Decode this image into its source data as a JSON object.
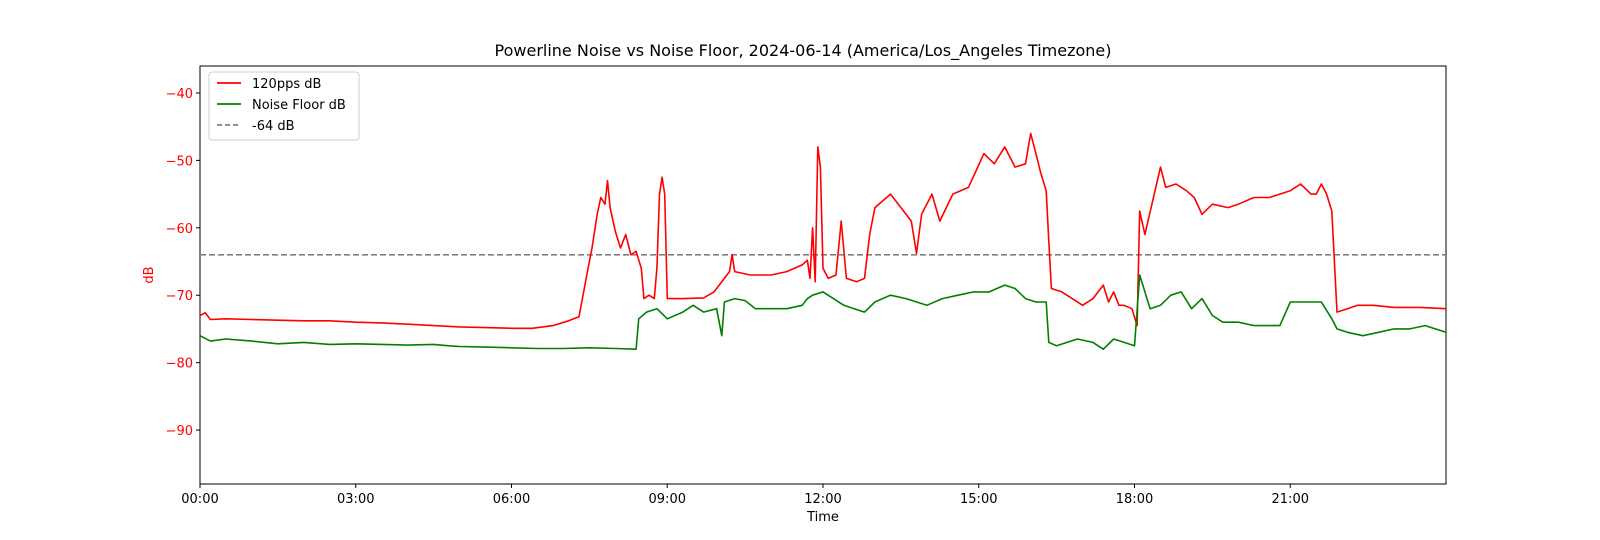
{
  "chart_data": {
    "type": "line",
    "title": "Powerline Noise vs Noise Floor, 2024-06-14 (America/Los_Angeles Timezone)",
    "xlabel": "Time",
    "ylabel": "dB",
    "x_unit": "hours",
    "xlim": [
      0,
      24
    ],
    "ylim": [
      -98,
      -36
    ],
    "y_ticks": [
      -40,
      -50,
      -60,
      -70,
      -80,
      -90
    ],
    "x_ticks": [
      {
        "value": 0,
        "label": "00:00"
      },
      {
        "value": 3,
        "label": "03:00"
      },
      {
        "value": 6,
        "label": "06:00"
      },
      {
        "value": 9,
        "label": "09:00"
      },
      {
        "value": 12,
        "label": "12:00"
      },
      {
        "value": 15,
        "label": "15:00"
      },
      {
        "value": 18,
        "label": "18:00"
      },
      {
        "value": 21,
        "label": "21:00"
      }
    ],
    "grid": false,
    "legend_position": "upper-left",
    "reference_line": {
      "name": "-64 dB",
      "y": -64,
      "color": "#808080",
      "style": "dashed"
    },
    "series": [
      {
        "name": "120pps dB",
        "color": "#ff0000",
        "points": [
          [
            0.0,
            -73.0
          ],
          [
            0.1,
            -72.6
          ],
          [
            0.2,
            -73.6
          ],
          [
            0.5,
            -73.5
          ],
          [
            1.0,
            -73.6
          ],
          [
            1.5,
            -73.7
          ],
          [
            2.0,
            -73.8
          ],
          [
            2.5,
            -73.8
          ],
          [
            3.0,
            -74.0
          ],
          [
            3.5,
            -74.1
          ],
          [
            4.0,
            -74.3
          ],
          [
            4.5,
            -74.5
          ],
          [
            5.0,
            -74.7
          ],
          [
            5.5,
            -74.8
          ],
          [
            6.0,
            -74.9
          ],
          [
            6.4,
            -74.9
          ],
          [
            6.8,
            -74.5
          ],
          [
            7.1,
            -73.8
          ],
          [
            7.3,
            -73.2
          ],
          [
            7.45,
            -67.0
          ],
          [
            7.55,
            -63.0
          ],
          [
            7.65,
            -58.0
          ],
          [
            7.72,
            -55.5
          ],
          [
            7.8,
            -56.5
          ],
          [
            7.85,
            -53.0
          ],
          [
            7.9,
            -57.0
          ],
          [
            8.0,
            -60.5
          ],
          [
            8.1,
            -63.0
          ],
          [
            8.2,
            -61.0
          ],
          [
            8.3,
            -64.0
          ],
          [
            8.4,
            -63.5
          ],
          [
            8.5,
            -66.0
          ],
          [
            8.55,
            -70.5
          ],
          [
            8.65,
            -70.0
          ],
          [
            8.75,
            -70.5
          ],
          [
            8.8,
            -66.0
          ],
          [
            8.85,
            -55.0
          ],
          [
            8.9,
            -52.5
          ],
          [
            8.95,
            -55.0
          ],
          [
            9.0,
            -70.5
          ],
          [
            9.3,
            -70.5
          ],
          [
            9.7,
            -70.4
          ],
          [
            9.9,
            -69.5
          ],
          [
            10.0,
            -68.5
          ],
          [
            10.2,
            -66.5
          ],
          [
            10.25,
            -64.0
          ],
          [
            10.3,
            -66.5
          ],
          [
            10.6,
            -67.0
          ],
          [
            11.0,
            -67.0
          ],
          [
            11.3,
            -66.5
          ],
          [
            11.6,
            -65.5
          ],
          [
            11.7,
            -64.8
          ],
          [
            11.75,
            -67.5
          ],
          [
            11.8,
            -60.0
          ],
          [
            11.85,
            -68.0
          ],
          [
            11.9,
            -48.0
          ],
          [
            11.95,
            -51.0
          ],
          [
            12.0,
            -66.0
          ],
          [
            12.1,
            -67.5
          ],
          [
            12.25,
            -67.0
          ],
          [
            12.35,
            -59.0
          ],
          [
            12.45,
            -67.5
          ],
          [
            12.65,
            -68.0
          ],
          [
            12.8,
            -67.5
          ],
          [
            12.9,
            -61.0
          ],
          [
            13.0,
            -57.0
          ],
          [
            13.3,
            -55.0
          ],
          [
            13.5,
            -57.0
          ],
          [
            13.7,
            -59.0
          ],
          [
            13.8,
            -63.8
          ],
          [
            13.9,
            -58.0
          ],
          [
            14.1,
            -55.0
          ],
          [
            14.25,
            -59.0
          ],
          [
            14.5,
            -55.0
          ],
          [
            14.8,
            -54.0
          ],
          [
            14.95,
            -51.5
          ],
          [
            15.1,
            -49.0
          ],
          [
            15.3,
            -50.5
          ],
          [
            15.5,
            -48.0
          ],
          [
            15.7,
            -51.0
          ],
          [
            15.9,
            -50.5
          ],
          [
            16.0,
            -46.0
          ],
          [
            16.1,
            -49.0
          ],
          [
            16.2,
            -52.0
          ],
          [
            16.3,
            -54.5
          ],
          [
            16.35,
            -62.0
          ],
          [
            16.4,
            -69.0
          ],
          [
            16.6,
            -69.5
          ],
          [
            16.8,
            -70.5
          ],
          [
            17.0,
            -71.5
          ],
          [
            17.2,
            -70.5
          ],
          [
            17.4,
            -68.5
          ],
          [
            17.5,
            -71.0
          ],
          [
            17.6,
            -69.5
          ],
          [
            17.7,
            -71.5
          ],
          [
            17.8,
            -71.5
          ],
          [
            17.95,
            -72.0
          ],
          [
            18.05,
            -74.5
          ],
          [
            18.1,
            -57.5
          ],
          [
            18.2,
            -61.0
          ],
          [
            18.35,
            -56.0
          ],
          [
            18.5,
            -51.0
          ],
          [
            18.6,
            -54.0
          ],
          [
            18.8,
            -53.5
          ],
          [
            19.0,
            -54.5
          ],
          [
            19.15,
            -55.5
          ],
          [
            19.3,
            -58.0
          ],
          [
            19.5,
            -56.5
          ],
          [
            19.8,
            -57.0
          ],
          [
            20.0,
            -56.5
          ],
          [
            20.3,
            -55.5
          ],
          [
            20.6,
            -55.5
          ],
          [
            20.8,
            -55.0
          ],
          [
            21.0,
            -54.5
          ],
          [
            21.2,
            -53.5
          ],
          [
            21.4,
            -55.0
          ],
          [
            21.5,
            -55.0
          ],
          [
            21.6,
            -53.5
          ],
          [
            21.7,
            -55.0
          ],
          [
            21.8,
            -57.5
          ],
          [
            21.85,
            -65.0
          ],
          [
            21.9,
            -72.5
          ],
          [
            22.1,
            -72.0
          ],
          [
            22.3,
            -71.5
          ],
          [
            22.6,
            -71.5
          ],
          [
            23.0,
            -71.8
          ],
          [
            23.5,
            -71.8
          ],
          [
            24.0,
            -72.0
          ]
        ]
      },
      {
        "name": "Noise Floor dB",
        "color": "#008000",
        "points": [
          [
            0.0,
            -76.0
          ],
          [
            0.2,
            -76.8
          ],
          [
            0.5,
            -76.5
          ],
          [
            1.0,
            -76.8
          ],
          [
            1.5,
            -77.2
          ],
          [
            2.0,
            -77.0
          ],
          [
            2.5,
            -77.3
          ],
          [
            3.0,
            -77.2
          ],
          [
            3.5,
            -77.3
          ],
          [
            4.0,
            -77.4
          ],
          [
            4.5,
            -77.3
          ],
          [
            4.8,
            -77.5
          ],
          [
            5.0,
            -77.6
          ],
          [
            5.5,
            -77.7
          ],
          [
            6.0,
            -77.8
          ],
          [
            6.5,
            -77.9
          ],
          [
            7.0,
            -77.9
          ],
          [
            7.5,
            -77.8
          ],
          [
            8.0,
            -77.9
          ],
          [
            8.4,
            -78.0
          ],
          [
            8.45,
            -73.5
          ],
          [
            8.6,
            -72.5
          ],
          [
            8.8,
            -72.0
          ],
          [
            9.0,
            -73.5
          ],
          [
            9.3,
            -72.5
          ],
          [
            9.5,
            -71.5
          ],
          [
            9.7,
            -72.5
          ],
          [
            9.95,
            -72.0
          ],
          [
            10.05,
            -76.0
          ],
          [
            10.1,
            -71.0
          ],
          [
            10.3,
            -70.5
          ],
          [
            10.5,
            -70.8
          ],
          [
            10.7,
            -72.0
          ],
          [
            11.0,
            -72.0
          ],
          [
            11.3,
            -72.0
          ],
          [
            11.6,
            -71.5
          ],
          [
            11.7,
            -70.5
          ],
          [
            11.8,
            -70.0
          ],
          [
            12.0,
            -69.5
          ],
          [
            12.2,
            -70.5
          ],
          [
            12.4,
            -71.5
          ],
          [
            12.6,
            -72.0
          ],
          [
            12.8,
            -72.5
          ],
          [
            13.0,
            -71.0
          ],
          [
            13.3,
            -70.0
          ],
          [
            13.6,
            -70.5
          ],
          [
            14.0,
            -71.5
          ],
          [
            14.3,
            -70.5
          ],
          [
            14.6,
            -70.0
          ],
          [
            14.9,
            -69.5
          ],
          [
            15.2,
            -69.5
          ],
          [
            15.5,
            -68.5
          ],
          [
            15.7,
            -69.0
          ],
          [
            15.9,
            -70.5
          ],
          [
            16.1,
            -71.0
          ],
          [
            16.3,
            -71.0
          ],
          [
            16.35,
            -77.0
          ],
          [
            16.5,
            -77.5
          ],
          [
            16.7,
            -77.0
          ],
          [
            16.9,
            -76.5
          ],
          [
            17.2,
            -77.0
          ],
          [
            17.4,
            -78.0
          ],
          [
            17.6,
            -76.5
          ],
          [
            17.8,
            -77.0
          ],
          [
            18.0,
            -77.5
          ],
          [
            18.1,
            -67.0
          ],
          [
            18.3,
            -72.0
          ],
          [
            18.5,
            -71.5
          ],
          [
            18.7,
            -70.0
          ],
          [
            18.9,
            -69.5
          ],
          [
            19.1,
            -72.0
          ],
          [
            19.3,
            -70.5
          ],
          [
            19.5,
            -73.0
          ],
          [
            19.7,
            -74.0
          ],
          [
            20.0,
            -74.0
          ],
          [
            20.3,
            -74.5
          ],
          [
            20.6,
            -74.5
          ],
          [
            20.8,
            -74.5
          ],
          [
            21.0,
            -71.0
          ],
          [
            21.3,
            -71.0
          ],
          [
            21.6,
            -71.0
          ],
          [
            21.8,
            -73.5
          ],
          [
            21.9,
            -75.0
          ],
          [
            22.1,
            -75.5
          ],
          [
            22.4,
            -76.0
          ],
          [
            22.7,
            -75.5
          ],
          [
            23.0,
            -75.0
          ],
          [
            23.3,
            -75.0
          ],
          [
            23.6,
            -74.5
          ],
          [
            24.0,
            -75.5
          ]
        ]
      }
    ]
  }
}
